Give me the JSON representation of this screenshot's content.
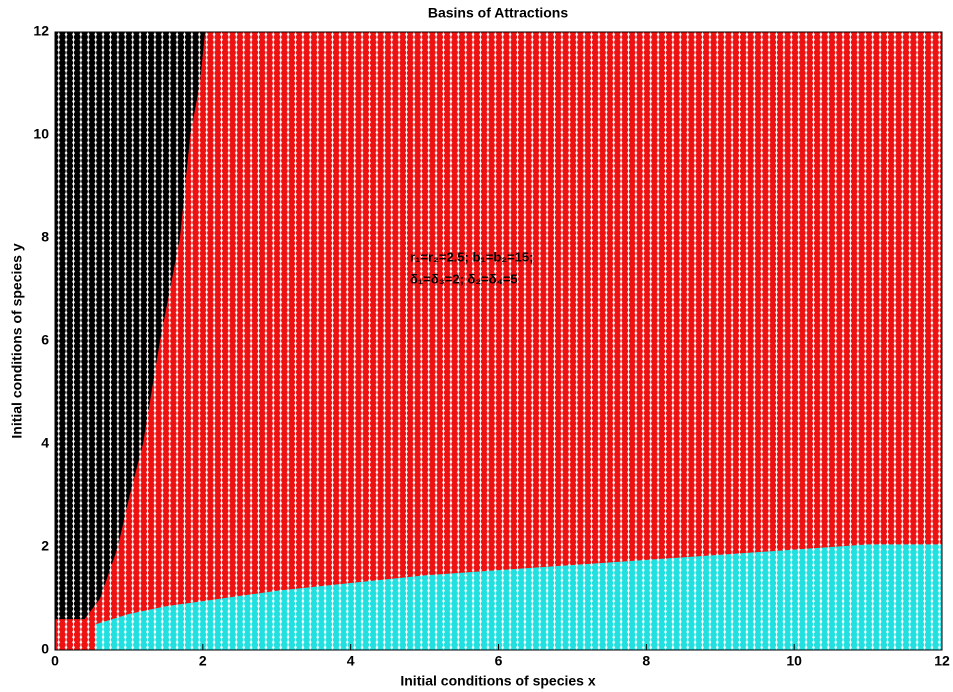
{
  "chart_data": {
    "type": "basins",
    "title": "Basins of Attractions",
    "xlabel": "Initial conditions of species x",
    "ylabel": "Initial conditions of species y",
    "annotations": [
      "r₁=r₂=2.5; b₁=b₂=15;",
      "δ₁=δ₃=2; δ₂=δ₄=5"
    ],
    "xlim": [
      0,
      12
    ],
    "ylim": [
      0,
      12
    ],
    "xticks": [
      0,
      2,
      4,
      6,
      8,
      10,
      12
    ],
    "yticks": [
      0,
      2,
      4,
      6,
      8,
      10,
      12
    ],
    "series": [
      {
        "color": "#ee1111",
        "x": [
          0,
          12,
          12,
          0
        ],
        "values": [
          0,
          0,
          12,
          12
        ]
      },
      {
        "color": "#000000",
        "x": [
          0,
          0.4,
          0.61,
          0.85,
          1.01,
          1.19,
          1.42,
          1.69,
          1.83,
          1.96,
          2.03,
          0
        ],
        "values": [
          0.6,
          0.6,
          1,
          2,
          3,
          4,
          6,
          8,
          10,
          11,
          12,
          12
        ]
      },
      {
        "color": "#22e0e0",
        "x": [
          0.55,
          0.55,
          1,
          1.5,
          2,
          3,
          4,
          5,
          6,
          7,
          8,
          9,
          10,
          11,
          12,
          12
        ],
        "values": [
          0,
          0.5,
          0.7,
          0.85,
          0.95,
          1.15,
          1.3,
          1.45,
          1.55,
          1.65,
          1.75,
          1.85,
          1.95,
          2.05,
          2.05,
          0
        ]
      }
    ]
  }
}
